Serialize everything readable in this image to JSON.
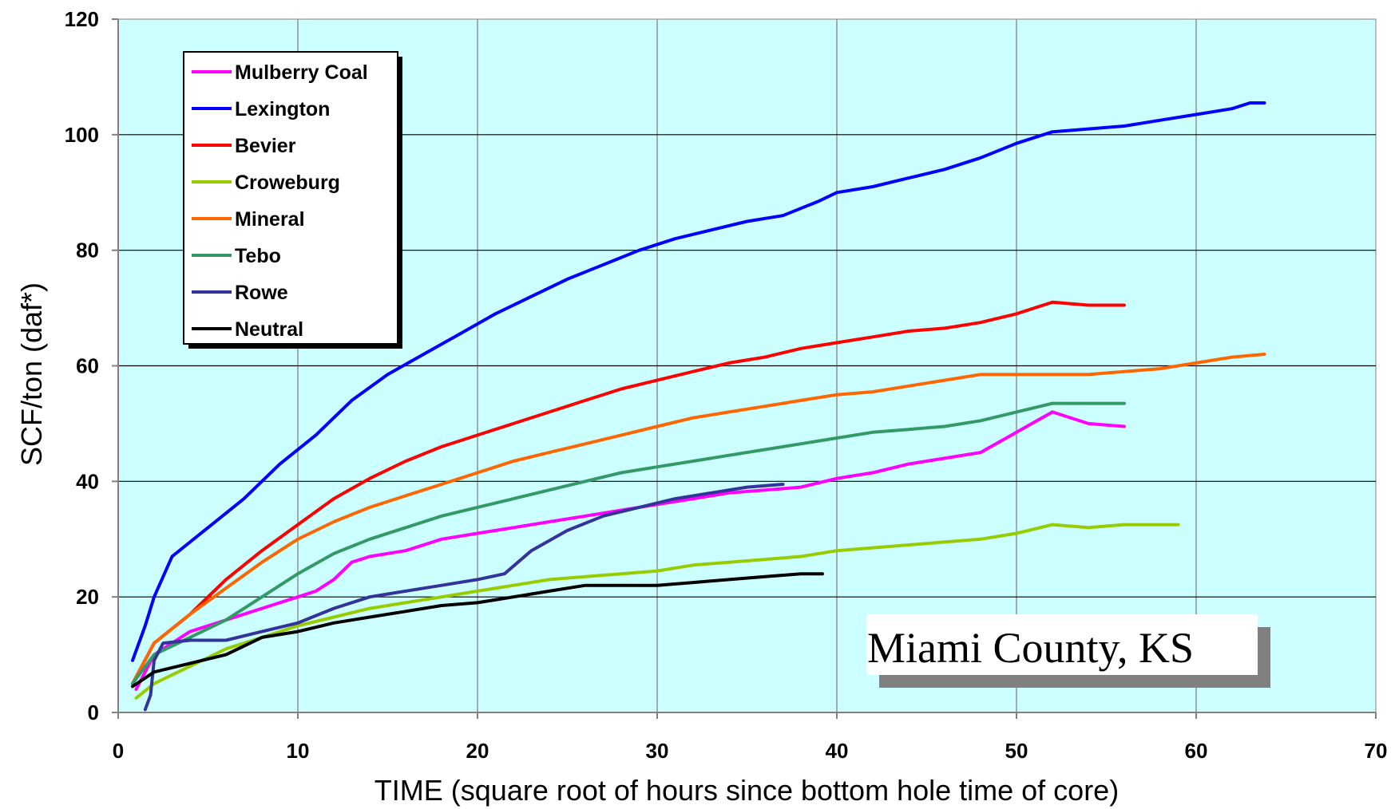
{
  "chart_data": {
    "type": "line",
    "title": "",
    "xlabel": "TIME (square root of hours since bottom hole time of core)",
    "ylabel": "SCF/ton (daf*)",
    "xlim": [
      0,
      70
    ],
    "ylim": [
      0,
      120
    ],
    "xticks": [
      0,
      10,
      20,
      30,
      40,
      50,
      60,
      70
    ],
    "yticks": [
      0,
      20,
      40,
      60,
      80,
      100,
      120
    ],
    "grid": true,
    "plot_background": "#ccffff",
    "legend_position": "top-left",
    "annotation": "Miami County, KS",
    "series": [
      {
        "name": "Mulberry Coal",
        "color": "#ff00ff",
        "points": [
          [
            1,
            4
          ],
          [
            2,
            10
          ],
          [
            4,
            14
          ],
          [
            6,
            16
          ],
          [
            8,
            18
          ],
          [
            10,
            20
          ],
          [
            11,
            21
          ],
          [
            12,
            23
          ],
          [
            13,
            26
          ],
          [
            14,
            27
          ],
          [
            16,
            28
          ],
          [
            18,
            30
          ],
          [
            20,
            31
          ],
          [
            22,
            32
          ],
          [
            24,
            33
          ],
          [
            26,
            34
          ],
          [
            28,
            35
          ],
          [
            30,
            36
          ],
          [
            32,
            37
          ],
          [
            34,
            38
          ],
          [
            36,
            38.5
          ],
          [
            38,
            39
          ],
          [
            40,
            40.5
          ],
          [
            42,
            41.5
          ],
          [
            44,
            43
          ],
          [
            46,
            44
          ],
          [
            48,
            45
          ],
          [
            50,
            48.5
          ],
          [
            52,
            52
          ],
          [
            54,
            50
          ],
          [
            56,
            49.5
          ]
        ]
      },
      {
        "name": "Lexington",
        "color": "#0000ff",
        "points": [
          [
            0.8,
            9
          ],
          [
            1.5,
            15
          ],
          [
            2,
            20
          ],
          [
            3,
            27
          ],
          [
            5,
            32
          ],
          [
            7,
            37
          ],
          [
            9,
            43
          ],
          [
            11,
            48
          ],
          [
            13,
            54
          ],
          [
            15,
            58.5
          ],
          [
            17,
            62
          ],
          [
            19,
            65.5
          ],
          [
            21,
            69
          ],
          [
            23,
            72
          ],
          [
            25,
            75
          ],
          [
            27,
            77.5
          ],
          [
            29,
            80
          ],
          [
            31,
            82
          ],
          [
            33,
            83.5
          ],
          [
            35,
            85
          ],
          [
            37,
            86
          ],
          [
            39,
            88.5
          ],
          [
            40,
            90
          ],
          [
            42,
            91
          ],
          [
            44,
            92.5
          ],
          [
            46,
            94
          ],
          [
            48,
            96
          ],
          [
            50,
            98.5
          ],
          [
            52,
            100.5
          ],
          [
            54,
            101
          ],
          [
            56,
            101.5
          ],
          [
            58,
            102.5
          ],
          [
            60,
            103.5
          ],
          [
            62,
            104.5
          ],
          [
            63,
            105.5
          ],
          [
            63.8,
            105.5
          ]
        ]
      },
      {
        "name": "Bevier",
        "color": "#ff0000",
        "points": [
          [
            0.8,
            5
          ],
          [
            2,
            12
          ],
          [
            4,
            17
          ],
          [
            6,
            23
          ],
          [
            8,
            28
          ],
          [
            10,
            32.5
          ],
          [
            12,
            37
          ],
          [
            14,
            40.5
          ],
          [
            16,
            43.5
          ],
          [
            18,
            46
          ],
          [
            20,
            48
          ],
          [
            22,
            50
          ],
          [
            24,
            52
          ],
          [
            26,
            54
          ],
          [
            28,
            56
          ],
          [
            30,
            57.5
          ],
          [
            32,
            59
          ],
          [
            34,
            60.5
          ],
          [
            36,
            61.5
          ],
          [
            38,
            63
          ],
          [
            40,
            64
          ],
          [
            42,
            65
          ],
          [
            44,
            66
          ],
          [
            46,
            66.5
          ],
          [
            48,
            67.5
          ],
          [
            50,
            69
          ],
          [
            52,
            71
          ],
          [
            54,
            70.5
          ],
          [
            56,
            70.5
          ]
        ]
      },
      {
        "name": "Croweburg",
        "color": "#99cc00",
        "points": [
          [
            1,
            2.5
          ],
          [
            2,
            5
          ],
          [
            4,
            8
          ],
          [
            6,
            11
          ],
          [
            8,
            13
          ],
          [
            10,
            15
          ],
          [
            12,
            16.5
          ],
          [
            14,
            18
          ],
          [
            16,
            19
          ],
          [
            18,
            20
          ],
          [
            20,
            21
          ],
          [
            22,
            22
          ],
          [
            24,
            23
          ],
          [
            26,
            23.5
          ],
          [
            28,
            24
          ],
          [
            30,
            24.5
          ],
          [
            32,
            25.5
          ],
          [
            34,
            26
          ],
          [
            36,
            26.5
          ],
          [
            38,
            27
          ],
          [
            40,
            28
          ],
          [
            42,
            28.5
          ],
          [
            44,
            29
          ],
          [
            46,
            29.5
          ],
          [
            48,
            30
          ],
          [
            50,
            31
          ],
          [
            52,
            32.5
          ],
          [
            54,
            32
          ],
          [
            56,
            32.5
          ],
          [
            58,
            32.5
          ],
          [
            59,
            32.5
          ]
        ]
      },
      {
        "name": "Mineral",
        "color": "#ff6600",
        "points": [
          [
            0.8,
            5
          ],
          [
            2,
            12
          ],
          [
            4,
            17
          ],
          [
            6,
            21.5
          ],
          [
            8,
            26
          ],
          [
            10,
            30
          ],
          [
            12,
            33
          ],
          [
            14,
            35.5
          ],
          [
            16,
            37.5
          ],
          [
            18,
            39.5
          ],
          [
            20,
            41.5
          ],
          [
            22,
            43.5
          ],
          [
            24,
            45
          ],
          [
            26,
            46.5
          ],
          [
            28,
            48
          ],
          [
            30,
            49.5
          ],
          [
            32,
            51
          ],
          [
            34,
            52
          ],
          [
            36,
            53
          ],
          [
            38,
            54
          ],
          [
            40,
            55
          ],
          [
            42,
            55.5
          ],
          [
            44,
            56.5
          ],
          [
            46,
            57.5
          ],
          [
            48,
            58.5
          ],
          [
            50,
            58.5
          ],
          [
            52,
            58.5
          ],
          [
            54,
            58.5
          ],
          [
            56,
            59
          ],
          [
            58,
            59.5
          ],
          [
            60,
            60.5
          ],
          [
            62,
            61.5
          ],
          [
            63.8,
            62
          ]
        ]
      },
      {
        "name": "Tebo",
        "color": "#339966",
        "points": [
          [
            0.8,
            5
          ],
          [
            2,
            10
          ],
          [
            4,
            13
          ],
          [
            6,
            16
          ],
          [
            8,
            20
          ],
          [
            10,
            24
          ],
          [
            12,
            27.5
          ],
          [
            14,
            30
          ],
          [
            16,
            32
          ],
          [
            18,
            34
          ],
          [
            20,
            35.5
          ],
          [
            22,
            37
          ],
          [
            24,
            38.5
          ],
          [
            26,
            40
          ],
          [
            28,
            41.5
          ],
          [
            30,
            42.5
          ],
          [
            32,
            43.5
          ],
          [
            34,
            44.5
          ],
          [
            36,
            45.5
          ],
          [
            38,
            46.5
          ],
          [
            40,
            47.5
          ],
          [
            42,
            48.5
          ],
          [
            44,
            49
          ],
          [
            46,
            49.5
          ],
          [
            48,
            50.5
          ],
          [
            50,
            52
          ],
          [
            52,
            53.5
          ],
          [
            54,
            53.5
          ],
          [
            56,
            53.5
          ]
        ]
      },
      {
        "name": "Rowe",
        "color": "#333399",
        "points": [
          [
            1.5,
            0.5
          ],
          [
            1.8,
            3
          ],
          [
            2,
            9
          ],
          [
            2.5,
            12
          ],
          [
            4,
            12.5
          ],
          [
            6,
            12.5
          ],
          [
            8,
            14
          ],
          [
            10,
            15.5
          ],
          [
            12,
            18
          ],
          [
            14,
            20
          ],
          [
            16,
            21
          ],
          [
            18,
            22
          ],
          [
            20,
            23
          ],
          [
            21.5,
            24
          ],
          [
            23,
            28
          ],
          [
            25,
            31.5
          ],
          [
            27,
            34
          ],
          [
            29,
            35.5
          ],
          [
            31,
            37
          ],
          [
            33,
            38
          ],
          [
            35,
            39
          ],
          [
            37,
            39.5
          ]
        ]
      },
      {
        "name": "Neutral",
        "color": "#000000",
        "points": [
          [
            0.8,
            4.5
          ],
          [
            2,
            7
          ],
          [
            4,
            8.5
          ],
          [
            6,
            10
          ],
          [
            8,
            13
          ],
          [
            10,
            14
          ],
          [
            12,
            15.5
          ],
          [
            14,
            16.5
          ],
          [
            16,
            17.5
          ],
          [
            18,
            18.5
          ],
          [
            20,
            19
          ],
          [
            22,
            20
          ],
          [
            24,
            21
          ],
          [
            26,
            22
          ],
          [
            28,
            22
          ],
          [
            30,
            22
          ],
          [
            32,
            22.5
          ],
          [
            34,
            23
          ],
          [
            36,
            23.5
          ],
          [
            38,
            24
          ],
          [
            39.2,
            24
          ]
        ]
      }
    ]
  }
}
